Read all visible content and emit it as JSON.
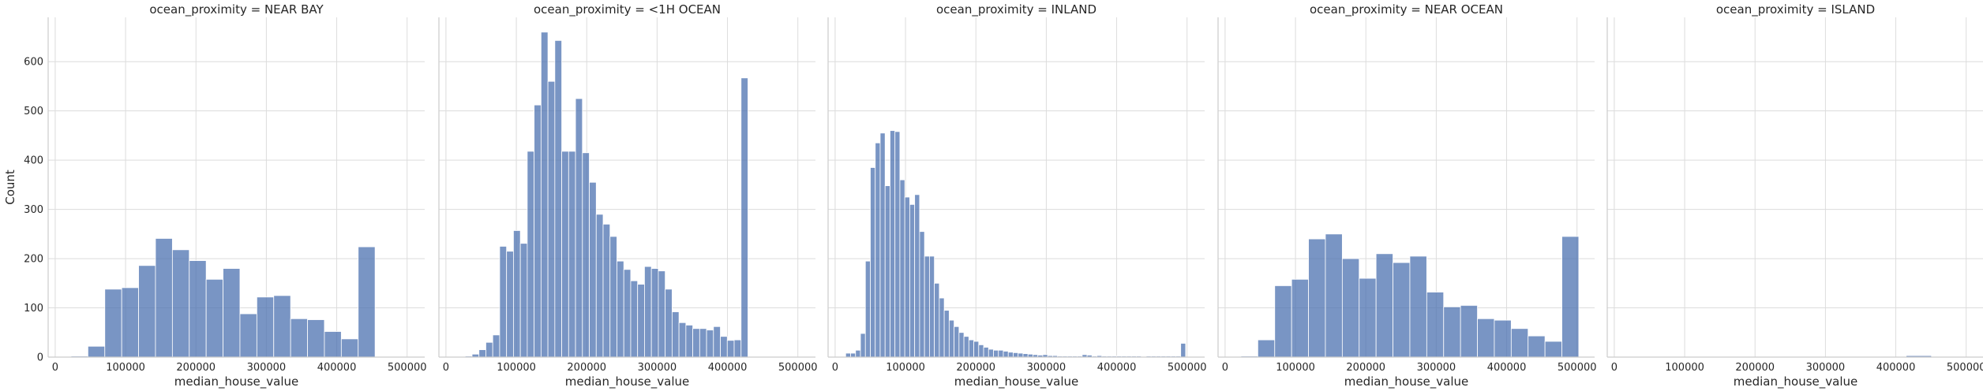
{
  "figure": {
    "facet_variable": "ocean_proximity",
    "bar_color": "#4c72b0",
    "grid_color": "#dcdcdc"
  },
  "chart_data": [
    {
      "type": "bar",
      "title": "ocean_proximity = NEAR BAY",
      "xlabel": "median_house_value",
      "ylabel": "Count",
      "xlim": [
        -10000,
        525000
      ],
      "ylim": [
        0,
        690
      ],
      "xticks": [
        0,
        100000,
        200000,
        300000,
        400000,
        500000
      ],
      "yticks": [
        0,
        100,
        200,
        300,
        400,
        500,
        600
      ],
      "grid": true,
      "bins": {
        "start": 22500,
        "width": 24000,
        "counts": [
          2,
          22,
          138,
          141,
          186,
          241,
          218,
          196,
          158,
          180,
          88,
          122,
          125,
          78,
          76,
          52,
          37,
          224
        ]
      }
    },
    {
      "type": "bar",
      "title": "ocean_proximity = <1H OCEAN",
      "xlabel": "median_house_value",
      "ylabel": "",
      "xlim": [
        -10000,
        525000
      ],
      "ylim": [
        0,
        690
      ],
      "xticks": [
        0,
        100000,
        200000,
        300000,
        400000,
        500000
      ],
      "yticks": [
        0,
        100,
        200,
        300,
        400,
        500,
        600
      ],
      "grid": true,
      "bins": {
        "start": 17500,
        "width": 9800,
        "counts": [
          1,
          2,
          6,
          15,
          30,
          45,
          225,
          215,
          257,
          231,
          418,
          512,
          660,
          560,
          643,
          418,
          418,
          525,
          415,
          355,
          290,
          270,
          245,
          195,
          178,
          155,
          148,
          184,
          180,
          175,
          138,
          92,
          70,
          65,
          58,
          58,
          55,
          62,
          42,
          34,
          35,
          567
        ]
      }
    },
    {
      "type": "bar",
      "title": "ocean_proximity = INLAND",
      "xlabel": "median_house_value",
      "ylabel": "",
      "xlim": [
        -10000,
        525000
      ],
      "ylim": [
        0,
        690
      ],
      "xticks": [
        0,
        100000,
        200000,
        300000,
        400000,
        500000
      ],
      "yticks": [
        0,
        100,
        200,
        300,
        400,
        500,
        600
      ],
      "grid": true,
      "bins": {
        "start": 15000,
        "width": 7000,
        "counts": [
          8,
          8,
          14,
          48,
          195,
          385,
          435,
          455,
          348,
          460,
          458,
          360,
          325,
          310,
          330,
          255,
          205,
          205,
          150,
          120,
          95,
          75,
          62,
          50,
          42,
          35,
          32,
          25,
          20,
          16,
          14,
          14,
          12,
          10,
          9,
          8,
          7,
          6,
          5,
          4,
          5,
          3,
          3,
          2,
          2,
          2,
          2,
          2,
          5,
          4,
          2,
          3,
          2,
          2,
          2,
          2,
          2,
          2,
          2,
          2,
          1,
          2,
          2,
          2,
          2,
          2,
          2,
          2,
          28
        ]
      }
    },
    {
      "type": "bar",
      "title": "ocean_proximity = NEAR OCEAN",
      "xlabel": "median_house_value",
      "ylabel": "",
      "xlim": [
        -10000,
        525000
      ],
      "ylim": [
        0,
        690
      ],
      "xticks": [
        0,
        100000,
        200000,
        300000,
        400000,
        500000
      ],
      "yticks": [
        0,
        100,
        200,
        300,
        400,
        500,
        600
      ],
      "grid": true,
      "bins": {
        "start": 22500,
        "width": 24000,
        "counts": [
          2,
          35,
          145,
          158,
          240,
          250,
          200,
          160,
          210,
          192,
          205,
          132,
          102,
          105,
          78,
          75,
          58,
          43,
          32,
          245
        ]
      }
    },
    {
      "type": "bar",
      "title": "ocean_proximity = ISLAND",
      "xlabel": "median_house_value",
      "ylabel": "",
      "xlim": [
        -10000,
        525000
      ],
      "ylim": [
        0,
        690
      ],
      "xticks": [
        0,
        100000,
        200000,
        300000,
        400000,
        500000
      ],
      "yticks": [
        0,
        100,
        200,
        300,
        400,
        500,
        600
      ],
      "grid": true,
      "bins": {
        "start": 414700,
        "width": 36000,
        "counts": [
          3
        ]
      }
    }
  ]
}
